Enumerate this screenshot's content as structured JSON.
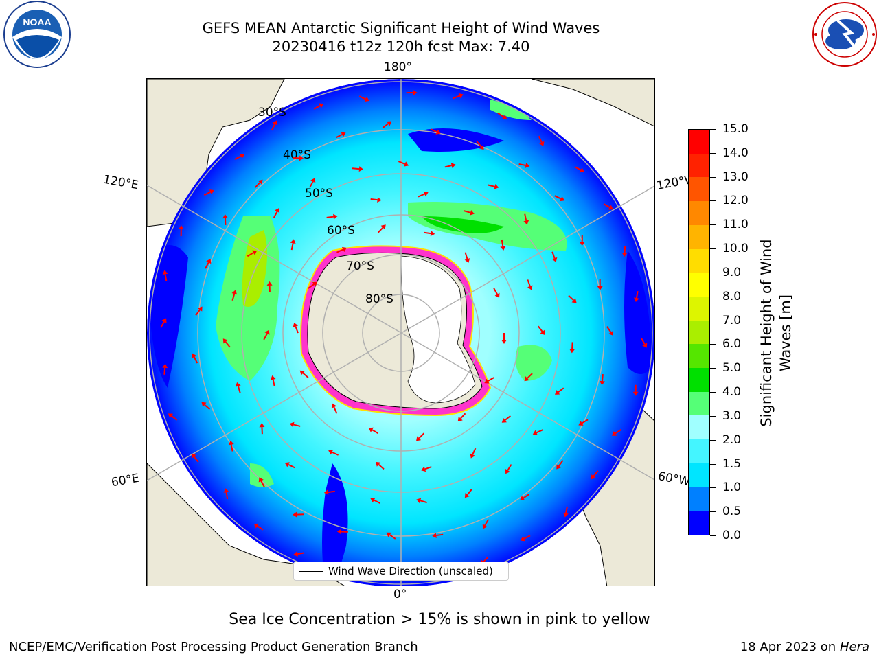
{
  "header": {
    "title_line1": "GEFS MEAN Antarctic Significant Height of Wind Waves",
    "title_line2": "20230416 t12z 120h fcst   Max: 7.40"
  },
  "logos": {
    "noaa": {
      "text": "NOAA",
      "ring_text": "NATIONAL OCEANIC AND ATMOSPHERIC ADMINISTRATION · U.S. DEPARTMENT OF COMMERCE"
    },
    "nws": {
      "ring_text": "NATIONAL WEATHER SERVICE"
    }
  },
  "map": {
    "projection": "south-polar-stereographic",
    "longitude_labels": {
      "top": "180°",
      "bottom": "0°",
      "upper_left": "120°E",
      "upper_right": "120°W",
      "lower_left": "60°E",
      "lower_right": "60°W"
    },
    "latitude_labels": [
      "30°S",
      "40°S",
      "50°S",
      "60°S",
      "70°S",
      "80°S"
    ],
    "legend_label": "Wind Wave Direction (unscaled)",
    "colors": {
      "land": "#ece9d8",
      "grid": "#b0b0b0",
      "arrow": "#ff0000",
      "sea_ice": "#ff33cc",
      "continent_ice": "#ffffff"
    }
  },
  "colorbar": {
    "label": "Significant Height of Wind Waves [m]",
    "ticks": [
      "0.0",
      "0.5",
      "1.0",
      "1.5",
      "2.0",
      "3.0",
      "4.0",
      "5.0",
      "6.0",
      "7.0",
      "8.0",
      "9.0",
      "10.0",
      "11.0",
      "12.0",
      "13.0",
      "14.0",
      "15.0"
    ],
    "colors": [
      "#0000ff",
      "#0080ff",
      "#00e5ff",
      "#44f5ff",
      "#a0ffff",
      "#55ff77",
      "#00e000",
      "#55e600",
      "#aaee00",
      "#ddf500",
      "#ffff00",
      "#ffdd00",
      "#ffb400",
      "#ff8800",
      "#ff5500",
      "#ff2200",
      "#ff0000"
    ]
  },
  "footer": {
    "subtitle": "Sea Ice Concentration > 15% is shown in pink to yellow",
    "credit": "NCEP/EMC/Verification Post Processing Product Generation Branch",
    "date": "18 Apr 2023 on",
    "system": "Hera"
  }
}
